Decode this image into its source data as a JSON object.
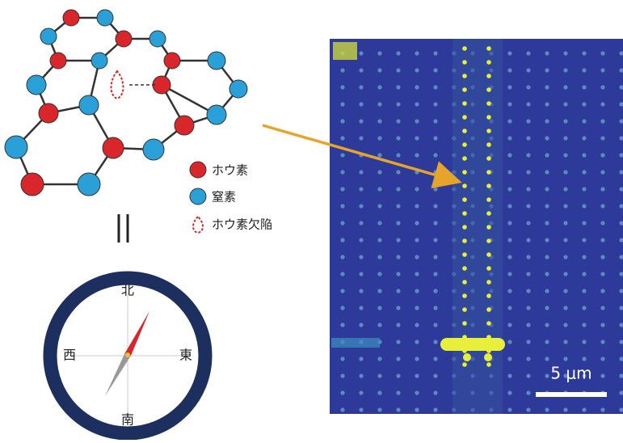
{
  "legend": {
    "items": [
      {
        "label": "ホウ素"
      },
      {
        "label": "窒素"
      },
      {
        "label": "ホウ素欠陥"
      }
    ]
  },
  "compass": {
    "north": "北",
    "west": "西",
    "east": "東",
    "south": "南"
  },
  "image": {
    "scale_bar": "5 μm"
  }
}
